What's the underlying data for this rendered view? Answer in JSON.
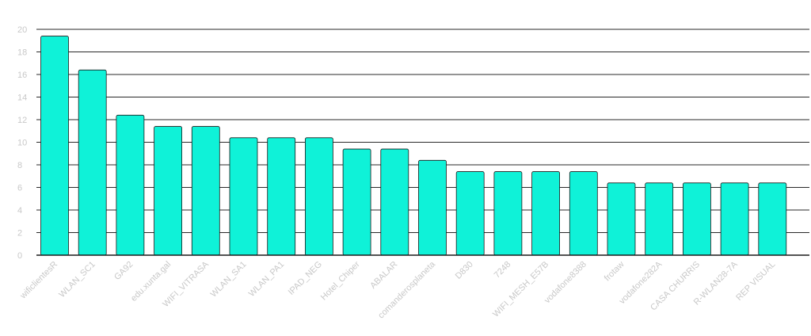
{
  "chart_data": {
    "type": "bar",
    "title": "",
    "xlabel": "",
    "ylabel": "",
    "ylim": [
      0,
      20
    ],
    "yticks": [
      0,
      2,
      4,
      6,
      8,
      10,
      12,
      14,
      16,
      18,
      20
    ],
    "grid": true,
    "bar_color": "#0ff2d8",
    "bar_stroke": "#1a1a1a",
    "grid_color": "#2a2a2a",
    "categories": [
      "wificlientesR",
      "WLAN_SC1",
      "GA92",
      "edu.xunta.gal",
      "WIFI_VITRASA",
      "WLAN_SA1",
      "WLAN_PA1",
      "IPAD_NEG",
      "Hotel_Chiper",
      "ABALAR",
      "comanderosplaneta",
      "D830",
      "7248",
      "WIFI_MESH_E57B",
      "vodafone8388",
      "frotaw",
      "vodafone282A",
      "CASA CHURRIS",
      "R-WLAN28-7A",
      "REP VISUAL"
    ],
    "values": [
      19.4,
      16.4,
      12.4,
      11.4,
      11.4,
      10.4,
      10.4,
      10.4,
      9.4,
      9.4,
      8.4,
      7.4,
      7.4,
      7.4,
      7.4,
      6.4,
      6.4,
      6.4,
      6.4,
      6.4
    ]
  }
}
